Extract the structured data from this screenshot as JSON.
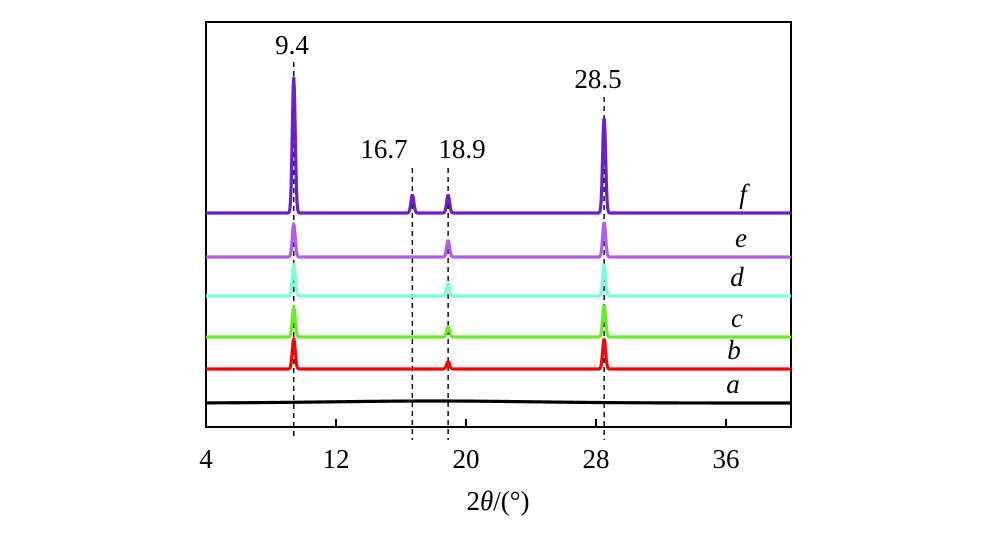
{
  "chart_data": {
    "type": "line",
    "xlabel_parts": {
      "prefix": "2",
      "symbol": "θ",
      "suffix": "/(°)"
    },
    "xlim": [
      4,
      40
    ],
    "x_ticks": [
      4,
      12,
      20,
      28,
      36
    ],
    "y_ticks_shown": false,
    "grid": false,
    "peak_markers": [
      {
        "x": 9.4,
        "label": "9.4"
      },
      {
        "x": 16.7,
        "label": "16.7"
      },
      {
        "x": 18.9,
        "label": "18.9"
      },
      {
        "x": 28.5,
        "label": "28.5"
      }
    ],
    "series": [
      {
        "name": "a",
        "color": "#000000",
        "peaks": []
      },
      {
        "name": "b",
        "color": "#ff0000",
        "peaks": [
          {
            "x": 9.4,
            "height": 1.0
          },
          {
            "x": 18.9,
            "height": 0.25
          },
          {
            "x": 28.5,
            "height": 1.0
          }
        ]
      },
      {
        "name": "c",
        "color": "#66ee22",
        "peaks": [
          {
            "x": 9.4,
            "height": 1.0
          },
          {
            "x": 18.9,
            "height": 0.35
          },
          {
            "x": 28.5,
            "height": 1.05
          }
        ]
      },
      {
        "name": "d",
        "color": "#77ffd8",
        "peaks": [
          {
            "x": 9.4,
            "height": 1.05
          },
          {
            "x": 18.9,
            "height": 0.4
          },
          {
            "x": 28.5,
            "height": 1.05
          }
        ]
      },
      {
        "name": "e",
        "color": "#b05cf0",
        "peaks": [
          {
            "x": 9.4,
            "height": 1.1
          },
          {
            "x": 18.9,
            "height": 0.55
          },
          {
            "x": 28.5,
            "height": 1.15
          }
        ]
      },
      {
        "name": "f",
        "color": "#6a1fd0",
        "peaks": [
          {
            "x": 9.4,
            "height": 4.5
          },
          {
            "x": 16.7,
            "height": 0.6
          },
          {
            "x": 18.9,
            "height": 0.6
          },
          {
            "x": 28.5,
            "height": 3.2
          }
        ]
      }
    ]
  }
}
